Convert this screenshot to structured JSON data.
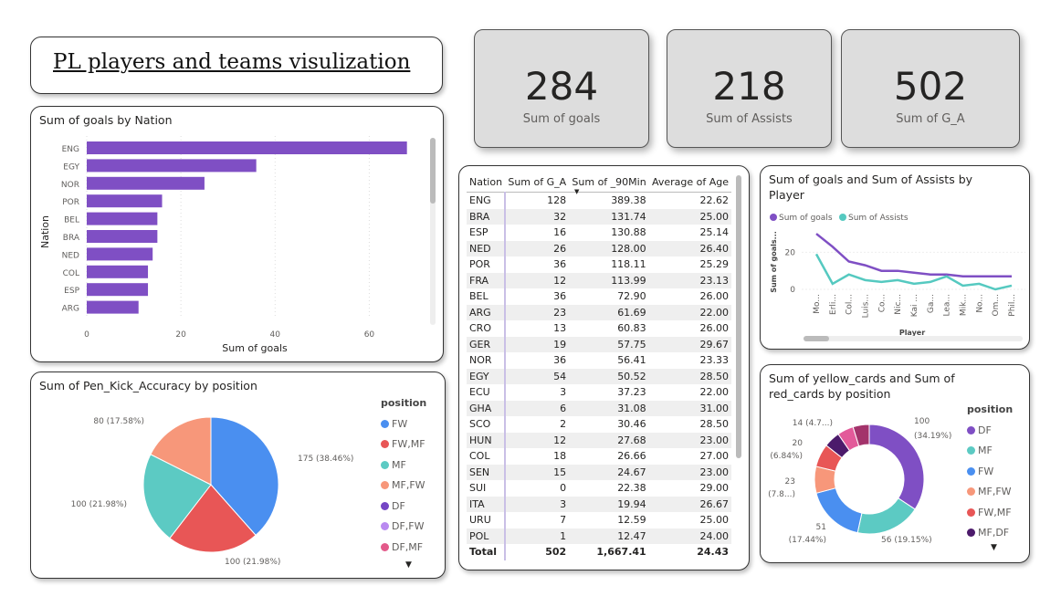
{
  "title": "PL players and teams visulization",
  "kpis": [
    {
      "value": "284",
      "label": "Sum of goals"
    },
    {
      "value": "218",
      "label": "Sum of Assists"
    },
    {
      "value": "502",
      "label": "Sum of G_A"
    }
  ],
  "bar_panel": {
    "title": "Sum of goals by Nation"
  },
  "table": {
    "headers": [
      "Nation",
      "Sum of G_A",
      "Sum of _90Min",
      "Average of Age"
    ],
    "rows": [
      [
        "ENG",
        "128",
        "389.38",
        "22.62"
      ],
      [
        "BRA",
        "32",
        "131.74",
        "25.00"
      ],
      [
        "ESP",
        "16",
        "130.88",
        "25.14"
      ],
      [
        "NED",
        "26",
        "128.00",
        "26.40"
      ],
      [
        "POR",
        "36",
        "118.11",
        "25.29"
      ],
      [
        "FRA",
        "12",
        "113.99",
        "23.13"
      ],
      [
        "BEL",
        "36",
        "72.90",
        "26.00"
      ],
      [
        "ARG",
        "23",
        "61.69",
        "22.00"
      ],
      [
        "CRO",
        "13",
        "60.83",
        "26.00"
      ],
      [
        "GER",
        "19",
        "57.75",
        "29.67"
      ],
      [
        "NOR",
        "36",
        "56.41",
        "23.33"
      ],
      [
        "EGY",
        "54",
        "50.52",
        "28.50"
      ],
      [
        "ECU",
        "3",
        "37.23",
        "22.00"
      ],
      [
        "GHA",
        "6",
        "31.08",
        "31.00"
      ],
      [
        "SCO",
        "2",
        "30.46",
        "28.50"
      ],
      [
        "HUN",
        "12",
        "27.68",
        "23.00"
      ],
      [
        "COL",
        "18",
        "26.66",
        "27.00"
      ],
      [
        "SEN",
        "15",
        "24.67",
        "23.00"
      ],
      [
        "SUI",
        "0",
        "22.38",
        "29.00"
      ],
      [
        "ITA",
        "3",
        "19.94",
        "26.67"
      ],
      [
        "URU",
        "7",
        "12.59",
        "25.00"
      ],
      [
        "POL",
        "1",
        "12.47",
        "24.00"
      ]
    ],
    "total": [
      "Total",
      "502",
      "1,667.41",
      "24.43"
    ]
  },
  "line_panel": {
    "title": "Sum of goals and Sum of Assists by Player"
  },
  "pie_panel": {
    "title": "Sum of Pen_Kick_Accuracy by position",
    "legend_title": "position",
    "legend": [
      "FW",
      "FW,MF",
      "MF",
      "MF,FW",
      "DF",
      "DF,FW",
      "DF,MF"
    ]
  },
  "donut_panel": {
    "title": "Sum of yellow_cards and Sum of red_cards by position",
    "legend_title": "position",
    "legend": [
      "DF",
      "MF",
      "FW",
      "MF,FW",
      "FW,MF",
      "MF,DF"
    ]
  },
  "chart_data": [
    {
      "type": "bar",
      "orientation": "horizontal",
      "title": "Sum of goals by Nation",
      "xlabel": "Sum of goals",
      "ylabel": "Nation",
      "categories": [
        "ENG",
        "EGY",
        "NOR",
        "POR",
        "BEL",
        "BRA",
        "NED",
        "COL",
        "ESP",
        "ARG"
      ],
      "values": [
        68,
        36,
        25,
        16,
        15,
        15,
        14,
        13,
        13,
        11
      ],
      "xlim": [
        0,
        70
      ],
      "xticks": [
        0,
        20,
        40,
        60
      ],
      "color": "#7f4fc4",
      "grid": true
    },
    {
      "type": "line",
      "title": "Sum of goals and Sum of Assists by Player",
      "xlabel": "Player",
      "ylabel": "Sum of goals...",
      "categories": [
        "Mo...",
        "Erli...",
        "Col...",
        "Luis...",
        "Co...",
        "Nic...",
        "Kai ...",
        "Ga...",
        "Lea...",
        "Mik...",
        "No...",
        "Om...",
        "Phil..."
      ],
      "series": [
        {
          "name": "Sum of goals",
          "color": "#7f4fc4",
          "values": [
            30,
            23,
            15,
            13,
            10,
            10,
            9,
            8,
            8,
            7,
            7,
            7,
            7
          ]
        },
        {
          "name": "Sum of Assists",
          "color": "#55c9c0",
          "values": [
            19,
            3,
            8,
            5,
            4,
            5,
            3,
            4,
            7,
            2,
            3,
            0,
            2
          ]
        }
      ],
      "ylim": [
        0,
        32
      ],
      "yticks": [
        0,
        20
      ],
      "legend": "top-left"
    },
    {
      "type": "pie",
      "title": "Sum of Pen_Kick_Accuracy by position",
      "slices": [
        {
          "label": "FW",
          "value": 175,
          "pct": "38.46%",
          "color": "#4a8ff0"
        },
        {
          "label": "FW,MF",
          "value": 100,
          "pct": "21.98%",
          "color": "#e85656"
        },
        {
          "label": "MF",
          "value": 100,
          "pct": "21.98%",
          "color": "#5ccac3"
        },
        {
          "label": "MF,FW",
          "value": 80,
          "pct": "17.58%",
          "color": "#f7977a"
        }
      ],
      "data_labels": [
        "175 (38.46%)",
        "100 (21.98%)",
        "100 (21.98%)",
        "80 (17.58%)"
      ],
      "legend": "right",
      "legend_colors": [
        "#4a8ff0",
        "#e85656",
        "#5ccac3",
        "#f7977a",
        "#7446c4",
        "#b98af0",
        "#e35a8a"
      ]
    },
    {
      "type": "pie",
      "subtype": "donut",
      "title": "Sum of yellow_cards and Sum of red_cards by position",
      "slices": [
        {
          "label": "DF",
          "value": 100,
          "color": "#7f4fc4"
        },
        {
          "label": "MF",
          "value": 56,
          "color": "#5ccac3"
        },
        {
          "label": "FW",
          "value": 51,
          "color": "#4a8ff0"
        },
        {
          "label": "MF,FW",
          "value": 23,
          "color": "#f7977a"
        },
        {
          "label": "FW,MF",
          "value": 20,
          "color": "#e85656"
        },
        {
          "label": "MF,DF",
          "value": 14,
          "color": "#4c1a6b"
        },
        {
          "label": "",
          "value": 14,
          "color": "#e35a9a"
        },
        {
          "label": "",
          "value": 14,
          "color": "#a3336b"
        }
      ],
      "data_labels": [
        "100",
        "(34.19%)",
        "56 (19.15%)",
        "51",
        "(17.44%)",
        "23",
        "(7.8...)",
        "20",
        "(6.84%)",
        "14 (4.7...)"
      ],
      "legend": "right"
    }
  ]
}
